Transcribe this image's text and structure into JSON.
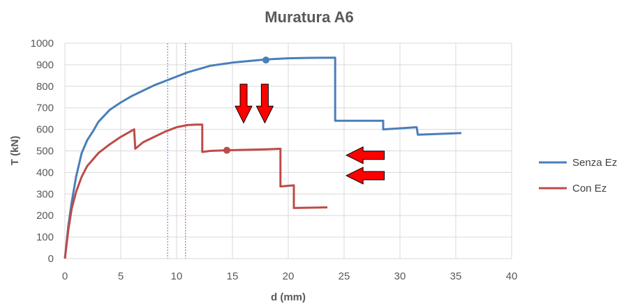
{
  "chart_data": {
    "type": "line",
    "title": "Muratura A6",
    "xlabel": "d (mm)",
    "ylabel": "T (kN)",
    "xlim": [
      0,
      40
    ],
    "ylim": [
      0,
      1000
    ],
    "x_ticks": [
      "0",
      "5",
      "10",
      "15",
      "20",
      "25",
      "30",
      "35",
      "40"
    ],
    "y_ticks": [
      "0",
      "100",
      "200",
      "300",
      "400",
      "500",
      "600",
      "700",
      "800",
      "900",
      "1000"
    ],
    "grid": true,
    "legend_position": "right",
    "series": [
      {
        "name": "Senza Ez",
        "color": "#4a7ebb",
        "points": [
          [
            0,
            0
          ],
          [
            0.3,
            150
          ],
          [
            0.6,
            260
          ],
          [
            1,
            380
          ],
          [
            1.5,
            490
          ],
          [
            2,
            550
          ],
          [
            2.5,
            590
          ],
          [
            3,
            635
          ],
          [
            4,
            690
          ],
          [
            5,
            725
          ],
          [
            6,
            755
          ],
          [
            7,
            780
          ],
          [
            8,
            805
          ],
          [
            9,
            825
          ],
          [
            10,
            845
          ],
          [
            11,
            865
          ],
          [
            12,
            880
          ],
          [
            13,
            895
          ],
          [
            15,
            910
          ],
          [
            17,
            920
          ],
          [
            18,
            925
          ],
          [
            20,
            930
          ],
          [
            22,
            932
          ],
          [
            24.2,
            933
          ],
          [
            24.2,
            640
          ],
          [
            28.5,
            640
          ],
          [
            28.5,
            600
          ],
          [
            31.5,
            610
          ],
          [
            31.6,
            575
          ],
          [
            35.5,
            583
          ]
        ],
        "marker": [
          18,
          922
        ]
      },
      {
        "name": "Con Ez",
        "color": "#be4b48",
        "points": [
          [
            0,
            0
          ],
          [
            0.3,
            130
          ],
          [
            0.6,
            230
          ],
          [
            1,
            310
          ],
          [
            1.5,
            380
          ],
          [
            2,
            430
          ],
          [
            2.5,
            460
          ],
          [
            3,
            490
          ],
          [
            4,
            530
          ],
          [
            5,
            565
          ],
          [
            6.2,
            600
          ],
          [
            6.3,
            510
          ],
          [
            7,
            540
          ],
          [
            8,
            565
          ],
          [
            9,
            590
          ],
          [
            10,
            610
          ],
          [
            11,
            620
          ],
          [
            11.8,
            622
          ],
          [
            12.3,
            622
          ],
          [
            12.3,
            495
          ],
          [
            13,
            500
          ],
          [
            14.5,
            503
          ],
          [
            16,
            505
          ],
          [
            18,
            507
          ],
          [
            19.3,
            510
          ],
          [
            19.3,
            335
          ],
          [
            20.5,
            340
          ],
          [
            20.5,
            235
          ],
          [
            23.5,
            238
          ]
        ],
        "marker": [
          14.5,
          503
        ]
      }
    ],
    "vertical_lines": [
      {
        "x": 9.2,
        "color": "#4a7ebb"
      },
      {
        "x": 10.8,
        "color": "#be4b48"
      }
    ],
    "arrows": [
      {
        "direction": "down",
        "x": 16,
        "y_top": 810,
        "y_bottom": 630
      },
      {
        "direction": "down",
        "x": 17.9,
        "y_top": 810,
        "y_bottom": 630
      },
      {
        "direction": "left",
        "y": 480,
        "x_tip": 25.2,
        "x_tail": 28.6
      },
      {
        "direction": "left",
        "y": 385,
        "x_tip": 25.2,
        "x_tail": 28.6
      }
    ]
  }
}
